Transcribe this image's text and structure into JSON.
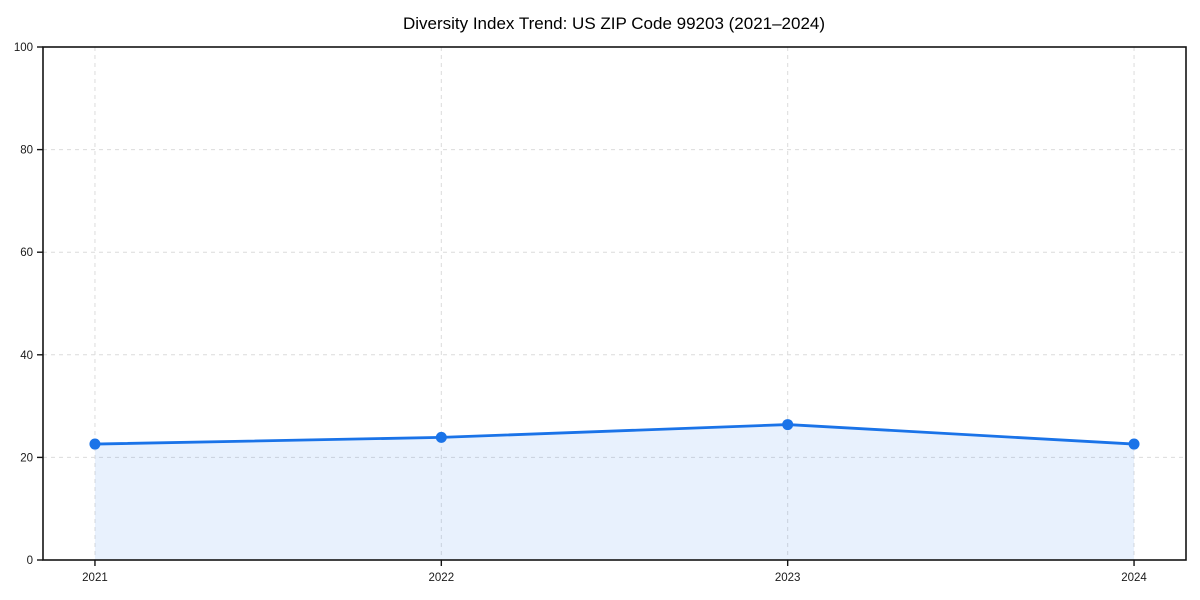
{
  "figure": {
    "background_color": "#ffffff"
  },
  "chart_data": {
    "type": "line",
    "title": "Diversity Index Trend: US ZIP Code 99203 (2021–2024)",
    "x": [
      2021,
      2022,
      2023,
      2024
    ],
    "x_tick_labels": [
      "2021",
      "2022",
      "2023",
      "2024"
    ],
    "y_ticks": [
      0,
      20,
      40,
      60,
      80,
      100
    ],
    "y_tick_labels": [
      "0",
      "20",
      "40",
      "60",
      "80",
      "100"
    ],
    "series": [
      {
        "name": "Diversity Index",
        "values": [
          22.6,
          23.9,
          26.4,
          22.6
        ]
      }
    ],
    "xlabel": "",
    "ylabel": "",
    "xlim": [
      2020.85,
      2024.15
    ],
    "ylim": [
      0,
      100
    ],
    "grid": true,
    "grid_style": "dashed",
    "legend": false,
    "area_fill": true,
    "colors": {
      "line": "#1a73e8",
      "marker": "#1a73e8",
      "area_fill": "rgba(26,115,232,0.10)",
      "grid": "#dcdcdc",
      "spine": "#141414",
      "tick_label": "#1a1a1a",
      "title": "#000000",
      "background": "#ffffff"
    }
  }
}
